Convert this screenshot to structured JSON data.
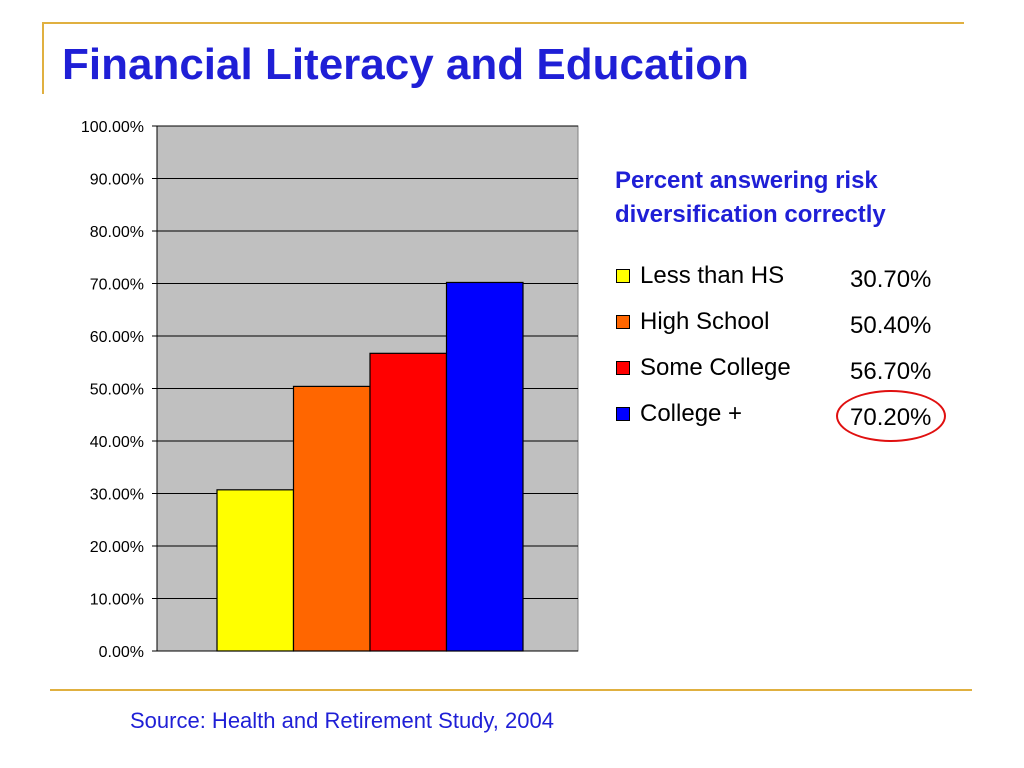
{
  "slide": {
    "title": "Financial Literacy and Education",
    "source": "Source: Health and Retirement Study, 2004"
  },
  "legend": {
    "title_line1": "Percent answering risk",
    "title_line2": "diversification correctly",
    "items": [
      {
        "label": "Less than HS",
        "value": "30.70%",
        "color": "#ffff00"
      },
      {
        "label": "High School",
        "value": "50.40%",
        "color": "#ff6600"
      },
      {
        "label": "Some College",
        "value": "56.70%",
        "color": "#ff0000"
      },
      {
        "label": "College +",
        "value": "70.20%",
        "color": "#0000ff"
      }
    ],
    "highlighted_item": "College +",
    "highlight_color": "#e01010"
  },
  "chart_data": {
    "type": "bar",
    "categories": [
      "Less than HS",
      "High School",
      "Some College",
      "College +"
    ],
    "values": [
      30.7,
      50.4,
      56.7,
      70.2
    ],
    "colors": [
      "#ffff00",
      "#ff6600",
      "#ff0000",
      "#0000ff"
    ],
    "title": "Percent answering risk diversification correctly",
    "xlabel": "",
    "ylabel": "",
    "ylim": [
      0,
      100
    ],
    "yticks": [
      "0.00%",
      "10.00%",
      "20.00%",
      "30.00%",
      "40.00%",
      "50.00%",
      "60.00%",
      "70.00%",
      "80.00%",
      "90.00%",
      "100.00%"
    ],
    "grid": true,
    "plot_background": "#c0c0c0",
    "legend_position": "right"
  },
  "theme": {
    "title_color": "#1f1fd6",
    "accent_line_color": "#e0b040"
  }
}
